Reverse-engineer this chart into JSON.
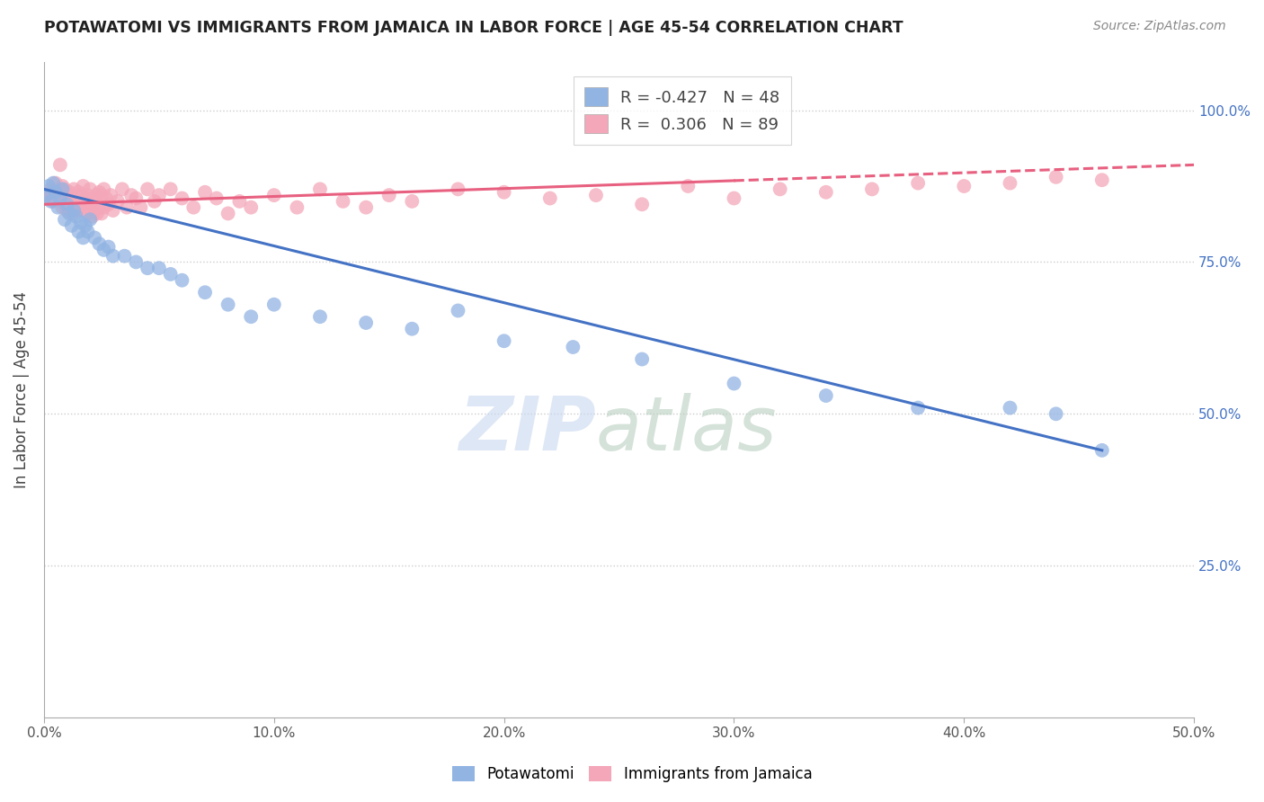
{
  "title": "POTAWATOMI VS IMMIGRANTS FROM JAMAICA IN LABOR FORCE | AGE 45-54 CORRELATION CHART",
  "source": "Source: ZipAtlas.com",
  "ylabel_label": "In Labor Force | Age 45-54",
  "legend_labels": [
    "Potawatomi",
    "Immigrants from Jamaica"
  ],
  "R_blue": -0.427,
  "N_blue": 48,
  "R_pink": 0.306,
  "N_pink": 89,
  "blue_color": "#92b4e3",
  "pink_color": "#f4a7b9",
  "blue_line_color": "#4472c4",
  "pink_line_color": "#e86080",
  "xlim": [
    0.0,
    0.5
  ],
  "ylim": [
    0.0,
    1.08
  ],
  "blue_scatter_x": [
    0.001,
    0.002,
    0.003,
    0.004,
    0.005,
    0.006,
    0.007,
    0.008,
    0.009,
    0.01,
    0.011,
    0.012,
    0.013,
    0.014,
    0.015,
    0.016,
    0.017,
    0.018,
    0.019,
    0.02,
    0.022,
    0.024,
    0.026,
    0.028,
    0.03,
    0.035,
    0.04,
    0.045,
    0.05,
    0.055,
    0.06,
    0.07,
    0.08,
    0.09,
    0.1,
    0.12,
    0.14,
    0.16,
    0.18,
    0.2,
    0.23,
    0.26,
    0.3,
    0.34,
    0.38,
    0.42,
    0.44,
    0.46
  ],
  "blue_scatter_y": [
    0.86,
    0.875,
    0.85,
    0.88,
    0.865,
    0.84,
    0.855,
    0.87,
    0.82,
    0.845,
    0.83,
    0.81,
    0.835,
    0.825,
    0.8,
    0.815,
    0.79,
    0.81,
    0.8,
    0.82,
    0.79,
    0.78,
    0.77,
    0.775,
    0.76,
    0.76,
    0.75,
    0.74,
    0.74,
    0.73,
    0.72,
    0.7,
    0.68,
    0.66,
    0.68,
    0.66,
    0.65,
    0.64,
    0.67,
    0.62,
    0.61,
    0.59,
    0.55,
    0.53,
    0.51,
    0.51,
    0.5,
    0.44
  ],
  "pink_scatter_x": [
    0.001,
    0.002,
    0.003,
    0.004,
    0.005,
    0.006,
    0.007,
    0.007,
    0.008,
    0.008,
    0.009,
    0.009,
    0.01,
    0.01,
    0.011,
    0.011,
    0.012,
    0.012,
    0.013,
    0.013,
    0.014,
    0.014,
    0.015,
    0.015,
    0.016,
    0.016,
    0.017,
    0.017,
    0.018,
    0.018,
    0.019,
    0.019,
    0.02,
    0.02,
    0.021,
    0.021,
    0.022,
    0.022,
    0.023,
    0.023,
    0.024,
    0.024,
    0.025,
    0.025,
    0.026,
    0.026,
    0.027,
    0.028,
    0.029,
    0.03,
    0.032,
    0.034,
    0.036,
    0.038,
    0.04,
    0.042,
    0.045,
    0.048,
    0.05,
    0.055,
    0.06,
    0.065,
    0.07,
    0.075,
    0.08,
    0.085,
    0.09,
    0.1,
    0.11,
    0.12,
    0.13,
    0.14,
    0.15,
    0.16,
    0.18,
    0.2,
    0.22,
    0.24,
    0.26,
    0.28,
    0.3,
    0.32,
    0.34,
    0.36,
    0.38,
    0.4,
    0.42,
    0.44,
    0.46
  ],
  "pink_scatter_y": [
    0.855,
    0.86,
    0.87,
    0.85,
    0.88,
    0.86,
    0.91,
    0.85,
    0.875,
    0.84,
    0.87,
    0.845,
    0.855,
    0.835,
    0.865,
    0.84,
    0.86,
    0.83,
    0.845,
    0.87,
    0.85,
    0.835,
    0.865,
    0.845,
    0.86,
    0.835,
    0.875,
    0.845,
    0.855,
    0.84,
    0.83,
    0.86,
    0.845,
    0.87,
    0.84,
    0.825,
    0.855,
    0.835,
    0.86,
    0.83,
    0.865,
    0.84,
    0.86,
    0.83,
    0.87,
    0.84,
    0.855,
    0.845,
    0.86,
    0.835,
    0.85,
    0.87,
    0.84,
    0.86,
    0.855,
    0.84,
    0.87,
    0.85,
    0.86,
    0.87,
    0.855,
    0.84,
    0.865,
    0.855,
    0.83,
    0.85,
    0.84,
    0.86,
    0.84,
    0.87,
    0.85,
    0.84,
    0.86,
    0.85,
    0.87,
    0.865,
    0.855,
    0.86,
    0.845,
    0.875,
    0.855,
    0.87,
    0.865,
    0.87,
    0.88,
    0.875,
    0.88,
    0.89,
    0.885
  ],
  "blue_line_x": [
    0.0,
    0.46
  ],
  "blue_line_y": [
    0.87,
    0.44
  ],
  "pink_line_x": [
    0.0,
    0.5
  ],
  "pink_line_y": [
    0.845,
    0.91
  ]
}
